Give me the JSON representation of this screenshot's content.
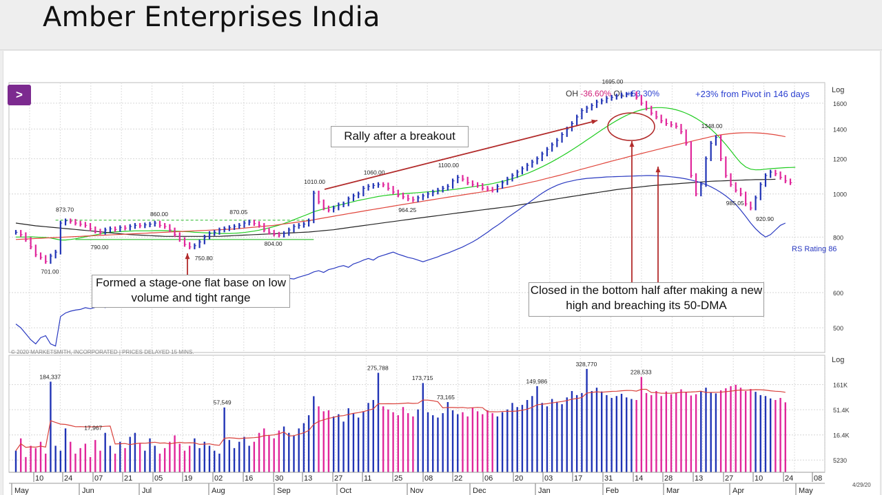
{
  "page": {
    "title": "Amber Enterprises India"
  },
  "header_stats": {
    "oh_label": "OH",
    "oh_value": "-36.60%",
    "ol_label": "OL",
    "ol_value": "+53.30%",
    "pivot_text": "+23% from Pivot in 146 days"
  },
  "annotations": {
    "base": "Formed a stage-one flat base on low volume and tight range",
    "rally": "Rally after a breakout",
    "close": "Closed in the bottom half after making a new high and breaching its 50-DMA"
  },
  "copyright": "© 2020 MARKETSMITH, INCORPORATED | PRICES DELAYED 15 MINS.",
  "chart_data": [
    {
      "type": "line",
      "scale": "log",
      "price_axis": {
        "label": "Log",
        "ticks": [
          500,
          600,
          800,
          1000,
          1200,
          1400,
          1600
        ],
        "ylim": [
          440,
          1780
        ]
      },
      "price_labels": [
        "701.00",
        "873.70",
        "790.00",
        "860.00",
        "750.80",
        "870.05",
        "804.00",
        "1010.00",
        "1060.00",
        "964.25",
        "1100.00",
        "1695.00",
        "1348.00",
        "985.05",
        "920.90"
      ],
      "rs_label": "RS Rating 86",
      "series": [
        {
          "name": "",
          "kind": "close",
          "values": [
            820,
            810,
            790,
            760,
            730,
            720,
            705,
            725,
            740,
            860,
            870,
            868,
            860,
            855,
            850,
            835,
            825,
            820,
            830,
            835,
            832,
            840,
            838,
            845,
            850,
            848,
            852,
            855,
            860,
            850,
            845,
            830,
            810,
            790,
            770,
            760,
            765,
            780,
            800,
            815,
            820,
            830,
            835,
            840,
            845,
            850,
            860,
            865,
            858,
            850,
            830,
            820,
            812,
            808,
            815,
            830,
            845,
            850,
            855,
            870,
            1005,
            960,
            930,
            920,
            930,
            945,
            950,
            975,
            990,
            1000,
            1030,
            1040,
            1045,
            1050,
            1048,
            1030,
            1010,
            995,
            985,
            975,
            970,
            980,
            990,
            1000,
            1010,
            1020,
            1030,
            1040,
            1070,
            1090,
            1080,
            1060,
            1050,
            1045,
            1030,
            1025,
            1020,
            1040,
            1060,
            1080,
            1100,
            1120,
            1140,
            1160,
            1180,
            1200,
            1230,
            1260,
            1290,
            1320,
            1360,
            1400,
            1440,
            1490,
            1540,
            1560,
            1580,
            1610,
            1620,
            1640,
            1650,
            1660,
            1670,
            1675,
            1680,
            1650,
            1600,
            1560,
            1520,
            1490,
            1460,
            1440,
            1430,
            1420,
            1380,
            1300,
            1100,
            1000,
            1050,
            1200,
            1300,
            1340,
            1200,
            1100,
            1050,
            1020,
            1000,
            950,
            930,
            980,
            1050,
            1100,
            1120,
            1110,
            1090,
            1070,
            1060
          ]
        },
        {
          "name": "",
          "kind": "dma50",
          "values": [
            800,
            800,
            800,
            801,
            800,
            799,
            798,
            796,
            792,
            788,
            788,
            790,
            793,
            797,
            801,
            805,
            809,
            813,
            817,
            820,
            822,
            823,
            824,
            825,
            826,
            826,
            826,
            826,
            827,
            827,
            827,
            826,
            825,
            824,
            823,
            822,
            820,
            819,
            818,
            817,
            816,
            815,
            815,
            815,
            816,
            817,
            819,
            822,
            825,
            829,
            834,
            839,
            845,
            851,
            858,
            866,
            875,
            884,
            893,
            902,
            912,
            919,
            925,
            931,
            937,
            943,
            949,
            955,
            961,
            967,
            972,
            977,
            982,
            987,
            991,
            994,
            997,
            999,
            1001,
            1003,
            1005,
            1007,
            1009,
            1011,
            1013,
            1015,
            1017,
            1020,
            1023,
            1026,
            1030,
            1034,
            1038,
            1042,
            1046,
            1050,
            1055,
            1061,
            1067,
            1074,
            1082,
            1091,
            1101,
            1112,
            1124,
            1137,
            1151,
            1166,
            1182,
            1199,
            1217,
            1236,
            1256,
            1277,
            1299,
            1322,
            1345,
            1369,
            1393,
            1417,
            1440,
            1462,
            1483,
            1502,
            1519,
            1534,
            1546,
            1555,
            1561,
            1564,
            1564,
            1561,
            1555,
            1546,
            1534,
            1519,
            1501,
            1480,
            1456,
            1429,
            1399,
            1366,
            1330,
            1292,
            1252,
            1211,
            1175,
            1150,
            1137,
            1133,
            1134,
            1137,
            1140,
            1142,
            1144,
            1146,
            1147,
            1148
          ]
        },
        {
          "name": "",
          "kind": "dma200",
          "values": [
            860,
            857,
            854,
            851,
            848,
            846,
            844,
            842,
            840,
            838,
            836,
            834,
            832,
            830,
            828,
            826,
            824,
            822,
            820,
            818,
            816,
            814,
            812,
            810,
            809,
            808,
            807,
            806,
            805,
            804,
            803,
            803,
            803,
            803,
            803,
            803,
            803,
            803,
            803,
            803,
            803,
            803,
            804,
            805,
            806,
            807,
            808,
            809,
            810,
            811,
            812,
            813,
            814,
            815,
            816,
            817,
            818,
            819,
            820,
            821,
            823,
            825,
            827,
            829,
            831,
            834,
            837,
            840,
            843,
            846,
            849,
            852,
            855,
            858,
            861,
            864,
            867,
            870,
            873,
            876,
            879,
            882,
            885,
            888,
            891,
            894,
            897,
            900,
            903,
            906,
            909,
            912,
            915,
            918,
            921,
            924,
            927,
            930,
            933,
            936,
            939,
            943,
            947,
            951,
            955,
            959,
            963,
            967,
            971,
            975,
            979,
            983,
            987,
            991,
            995,
            999,
            1003,
            1007,
            1011,
            1015,
            1019,
            1023,
            1026,
            1029,
            1032,
            1035,
            1038,
            1041,
            1044,
            1046,
            1048,
            1050,
            1052,
            1054,
            1056,
            1058,
            1060,
            1062,
            1064,
            1066,
            1068,
            1069,
            1070,
            1071,
            1072,
            1073,
            1074,
            1075,
            1076,
            1077,
            1077,
            1078,
            1078,
            1079
          ]
        },
        {
          "name": "",
          "kind": "dma150",
          "values": [
            790,
            791,
            792,
            793,
            794,
            795,
            796,
            797,
            798,
            799,
            800,
            801,
            802,
            803,
            804,
            805,
            806,
            807,
            808,
            809,
            810,
            811,
            812,
            813,
            814,
            815,
            816,
            817,
            818,
            819,
            820,
            821,
            822,
            823,
            824,
            825,
            826,
            827,
            828,
            829,
            830,
            831,
            832,
            833,
            834,
            836,
            838,
            840,
            842,
            844,
            846,
            848,
            850,
            853,
            856,
            859,
            862,
            865,
            868,
            871,
            875,
            879,
            883,
            887,
            891,
            895,
            899,
            903,
            907,
            911,
            915,
            919,
            923,
            927,
            931,
            935,
            939,
            943,
            947,
            951,
            955,
            959,
            963,
            967,
            971,
            975,
            979,
            983,
            987,
            991,
            995,
            999,
            1003,
            1007,
            1011,
            1015,
            1020,
            1025,
            1030,
            1035,
            1040,
            1046,
            1052,
            1058,
            1064,
            1070,
            1077,
            1084,
            1091,
            1098,
            1105,
            1113,
            1121,
            1129,
            1137,
            1145,
            1153,
            1161,
            1169,
            1177,
            1185,
            1193,
            1201,
            1209,
            1217,
            1225,
            1233,
            1241,
            1249,
            1257,
            1265,
            1273,
            1281,
            1289,
            1297,
            1305,
            1313,
            1321,
            1329,
            1337,
            1345,
            1352,
            1358,
            1363,
            1367,
            1370,
            1372,
            1373,
            1373,
            1372,
            1370,
            1367,
            1363,
            1358,
            1352,
            1345
          ]
        },
        {
          "name": "",
          "kind": "rs",
          "values": [
            510,
            500,
            485,
            470,
            460,
            475,
            480,
            460,
            455,
            530,
            540,
            545,
            548,
            550,
            555,
            552,
            556,
            560,
            555,
            562,
            568,
            570,
            566,
            572,
            575,
            578,
            574,
            580,
            585,
            582,
            586,
            590,
            585,
            592,
            590,
            596,
            598,
            594,
            600,
            604,
            608,
            612,
            606,
            610,
            616,
            620,
            618,
            626,
            630,
            624,
            628,
            632,
            630,
            636,
            640,
            646,
            644,
            650,
            655,
            660,
            668,
            672,
            666,
            676,
            680,
            686,
            690,
            684,
            696,
            702,
            710,
            716,
            710,
            722,
            728,
            734,
            740,
            732,
            726,
            720,
            716,
            710,
            704,
            710,
            716,
            722,
            730,
            736,
            744,
            752,
            760,
            770,
            780,
            792,
            806,
            820,
            836,
            850,
            866,
            884,
            900,
            916,
            934,
            950,
            968,
            986,
            1004,
            1020,
            1034,
            1046,
            1056,
            1064,
            1070,
            1076,
            1080,
            1084,
            1086,
            1088,
            1090,
            1092,
            1093,
            1094,
            1095,
            1096,
            1097,
            1098,
            1099,
            1100,
            1100,
            1099,
            1098,
            1096,
            1093,
            1090,
            1086,
            1081,
            1075,
            1068,
            1060,
            1050,
            1038,
            1024,
            1008,
            990,
            970,
            948,
            920,
            890,
            860,
            835,
            815,
            800,
            810,
            830,
            850,
            860
          ]
        }
      ]
    },
    {
      "type": "bar",
      "scale": "log",
      "volume_axis": {
        "label": "Log",
        "ticks": [
          "161K",
          "51.4K",
          "16.4K",
          "5230"
        ]
      },
      "volume_labels": [
        "184,337",
        "17,967",
        "57,549",
        "275,788",
        "173,715",
        "73,165",
        "149,986",
        "328,770",
        "228,533"
      ],
      "values": [
        8,
        14,
        6,
        10,
        9,
        12,
        7,
        184,
        10,
        8,
        22,
        12,
        7,
        9,
        11,
        6,
        13,
        8,
        18,
        10,
        7,
        12,
        9,
        15,
        18,
        11,
        8,
        14,
        10,
        7,
        9,
        12,
        16,
        11,
        8,
        10,
        14,
        9,
        12,
        10,
        8,
        7,
        57,
        13,
        9,
        12,
        15,
        10,
        12,
        18,
        22,
        16,
        14,
        20,
        24,
        18,
        16,
        22,
        28,
        40,
        95,
        60,
        48,
        50,
        38,
        42,
        30,
        55,
        44,
        36,
        48,
        70,
        80,
        275,
        60,
        52,
        46,
        40,
        58,
        44,
        38,
        52,
        173,
        46,
        40,
        36,
        44,
        73,
        50,
        42,
        46,
        38,
        56,
        48,
        42,
        50,
        44,
        38,
        46,
        52,
        70,
        58,
        64,
        80,
        96,
        150,
        70,
        60,
        84,
        74,
        66,
        90,
        120,
        100,
        110,
        328,
        120,
        140,
        118,
        100,
        88,
        96,
        106,
        90,
        84,
        80,
        228,
        110,
        100,
        120,
        96,
        118,
        104,
        110,
        130,
        116,
        98,
        104,
        120,
        140,
        112,
        108,
        124,
        136,
        150,
        160,
        140,
        120,
        132,
        116,
        100,
        96,
        86,
        80,
        88,
        72
      ]
    }
  ],
  "time_axis": {
    "days": [
      "10",
      "24",
      "07",
      "21",
      "05",
      "19",
      "02",
      "16",
      "30",
      "13",
      "27",
      "11",
      "25",
      "08",
      "22",
      "06",
      "20",
      "03",
      "17",
      "31",
      "14",
      "28",
      "13",
      "27",
      "10",
      "24",
      "08"
    ],
    "months": [
      "May",
      "Jun",
      "Jul",
      "Aug",
      "Sep",
      "Oct",
      "Nov",
      "Dec",
      "Jan",
      "Feb",
      "Mar",
      "Apr",
      "May"
    ],
    "date_stamp": "4/29/20"
  },
  "colors": {
    "up": "#2033b5",
    "down": "#e0259a",
    "dma50": "#1fcc1f",
    "dma200": "#222222",
    "dma150": "#e0443a",
    "rs": "#2838c0",
    "annotation_arrow": "#b22b2b",
    "expand_button": "#7c2a8f"
  }
}
